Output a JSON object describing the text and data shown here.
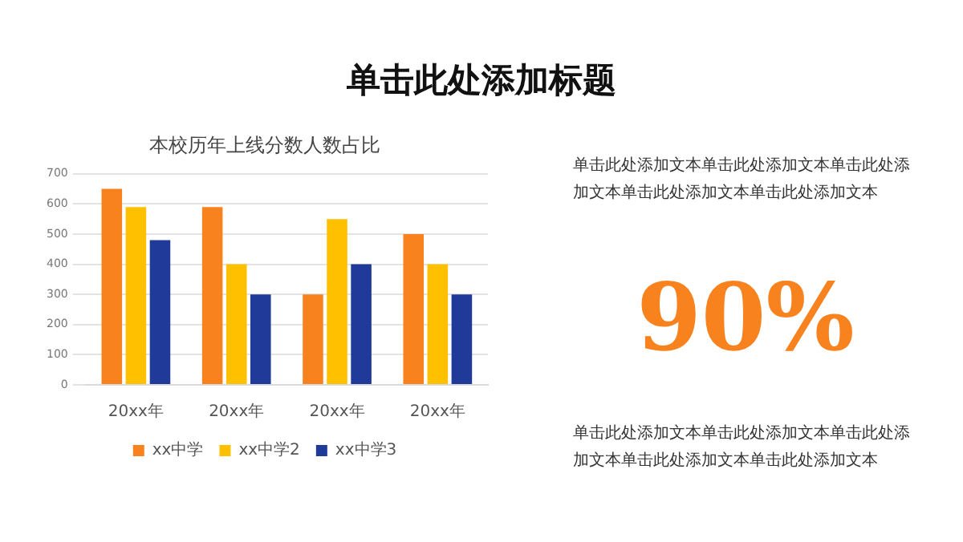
{
  "chart_data": [
    {
      "type": "bar",
      "title": "本校历年上线分数人数占比",
      "categories": [
        "20xx年",
        "20xx年",
        "20xx年",
        "20xx年"
      ],
      "series": [
        {
          "name": "xx中学",
          "color": "#f7821e",
          "values": [
            650,
            590,
            300,
            500
          ]
        },
        {
          "name": "xx中学2",
          "color": "#ffc000",
          "values": [
            590,
            400,
            550,
            400
          ]
        },
        {
          "name": "xx中学3",
          "color": "#203a9a",
          "values": [
            480,
            300,
            400,
            300
          ]
        }
      ],
      "ylim": [
        0,
        700
      ],
      "yticks": [
        0,
        100,
        200,
        300,
        400,
        500,
        600,
        700
      ],
      "grid": "y",
      "legend": "bottom"
    },
    {
      "type": "other",
      "title": "单击此处添加标题",
      "annotations": [
        "单击此处添加文本单击此处添加文本单击此处添加文本单击此处添加文本单击此处添加文本",
        "90%",
        "单击此处添加文本单击此处添加文本单击此处添加文本单击此处添加文本单击此处添加文本"
      ]
    }
  ]
}
